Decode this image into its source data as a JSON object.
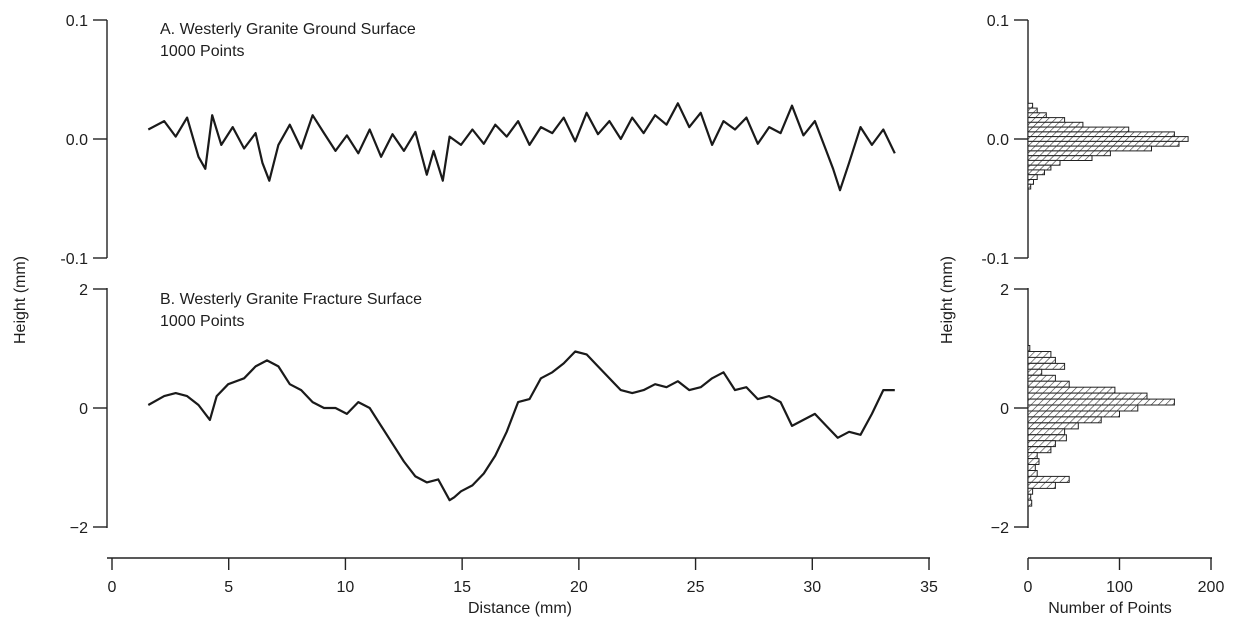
{
  "chart_data": [
    {
      "type": "line",
      "panel": "A",
      "title_line1": "A. Westerly Granite Ground Surface",
      "title_line2": "1000 Points",
      "xlabel": "Distance (mm)",
      "ylabel": "Height (mm)",
      "xlim": [
        0,
        35
      ],
      "ylim": [
        -0.1,
        0.1
      ],
      "y_ticks": [
        "0.1",
        "0.0",
        "-0.1"
      ],
      "series": [
        {
          "x": [
            0.8,
            1.5,
            2.0,
            2.5,
            3.0,
            3.3,
            3.6,
            4.0,
            4.5,
            5.0,
            5.5,
            5.8,
            6.1,
            6.5,
            7.0,
            7.5,
            8.0,
            8.5,
            9.0,
            9.5,
            10.0,
            10.5,
            11.0,
            11.5,
            12.0,
            12.5,
            13.0,
            13.3,
            13.7,
            14.0,
            14.5,
            15.0,
            15.5,
            16.0,
            16.5,
            17.0,
            17.5,
            18.0,
            18.5,
            19.0,
            19.5,
            20.0,
            20.5,
            21.0,
            21.5,
            22.0,
            22.5,
            23.0,
            23.5,
            24.0,
            24.5,
            25.0,
            25.5,
            26.0,
            26.5,
            27.0,
            27.5,
            28.0,
            28.5,
            29.0,
            29.5,
            30.0,
            30.5,
            30.8,
            31.1,
            31.5,
            32.0,
            32.5,
            33.0,
            33.5
          ],
          "y": [
            0.008,
            0.015,
            0.002,
            0.018,
            -0.015,
            -0.025,
            0.02,
            -0.005,
            0.01,
            -0.008,
            0.005,
            -0.02,
            -0.035,
            -0.005,
            0.012,
            -0.008,
            0.02,
            0.005,
            -0.01,
            0.003,
            -0.012,
            0.008,
            -0.015,
            0.004,
            -0.01,
            0.006,
            -0.03,
            -0.01,
            -0.035,
            0.002,
            -0.005,
            0.008,
            -0.004,
            0.012,
            0.002,
            0.015,
            -0.005,
            0.01,
            0.005,
            0.018,
            -0.002,
            0.022,
            0.004,
            0.015,
            0.0,
            0.018,
            0.005,
            0.02,
            0.012,
            0.03,
            0.01,
            0.022,
            -0.005,
            0.015,
            0.008,
            0.018,
            -0.004,
            0.01,
            0.005,
            0.028,
            0.003,
            0.015,
            -0.01,
            -0.025,
            -0.043,
            -0.02,
            0.01,
            -0.005,
            0.008,
            -0.012
          ]
        }
      ]
    },
    {
      "type": "line",
      "panel": "B",
      "title_line1": "B. Westerly Granite Fracture Surface",
      "title_line2": "1000 Points",
      "xlabel": "Distance (mm)",
      "ylabel": "Height (mm)",
      "xlim": [
        0,
        35
      ],
      "ylim": [
        -2,
        2
      ],
      "y_ticks": [
        "2",
        "0",
        "−2"
      ],
      "series": [
        {
          "x": [
            0.8,
            1.5,
            2.0,
            2.5,
            3.0,
            3.5,
            3.8,
            4.3,
            5.0,
            5.5,
            6.0,
            6.5,
            7.0,
            7.5,
            8.0,
            8.5,
            9.0,
            9.5,
            10.0,
            10.5,
            11.0,
            11.5,
            12.0,
            12.5,
            13.0,
            13.5,
            14.0,
            14.2,
            14.5,
            15.0,
            15.5,
            16.0,
            16.5,
            17.0,
            17.5,
            18.0,
            18.5,
            19.0,
            19.5,
            20.0,
            20.5,
            21.0,
            21.5,
            22.0,
            22.5,
            23.0,
            23.5,
            24.0,
            24.5,
            25.0,
            25.5,
            26.0,
            26.5,
            27.0,
            27.5,
            28.0,
            28.5,
            29.0,
            29.5,
            30.0,
            30.5,
            31.0,
            31.5,
            32.0,
            32.5,
            33.0,
            33.5
          ],
          "y": [
            0.05,
            0.2,
            0.25,
            0.2,
            0.05,
            -0.2,
            0.2,
            0.4,
            0.5,
            0.7,
            0.8,
            0.7,
            0.4,
            0.3,
            0.1,
            0.0,
            0.0,
            -0.1,
            0.1,
            0.0,
            -0.3,
            -0.6,
            -0.9,
            -1.15,
            -1.25,
            -1.2,
            -1.55,
            -1.5,
            -1.4,
            -1.3,
            -1.1,
            -0.8,
            -0.4,
            0.1,
            0.15,
            0.5,
            0.6,
            0.75,
            0.95,
            0.9,
            0.7,
            0.5,
            0.3,
            0.25,
            0.3,
            0.4,
            0.35,
            0.45,
            0.3,
            0.35,
            0.5,
            0.6,
            0.3,
            0.35,
            0.15,
            0.2,
            0.1,
            -0.3,
            -0.2,
            -0.1,
            -0.3,
            -0.5,
            -0.4,
            -0.45,
            -0.1,
            0.3,
            0.3
          ]
        }
      ]
    },
    {
      "type": "bar",
      "orientation": "horizontal",
      "panel": "A-histogram",
      "xlabel": "Number of Points",
      "ylabel": "Height (mm)",
      "xlim": [
        0,
        200
      ],
      "ylim": [
        -0.1,
        0.1
      ],
      "y_ticks": [
        "0.1",
        "0.0",
        "-0.1"
      ],
      "bin_centers": [
        0.028,
        0.024,
        0.02,
        0.016,
        0.012,
        0.008,
        0.004,
        0.0,
        -0.004,
        -0.008,
        -0.012,
        -0.016,
        -0.02,
        -0.024,
        -0.028,
        -0.032,
        -0.036,
        -0.04
      ],
      "values": [
        5,
        10,
        20,
        40,
        60,
        110,
        160,
        175,
        165,
        135,
        90,
        70,
        35,
        25,
        18,
        10,
        6,
        3
      ]
    },
    {
      "type": "bar",
      "orientation": "horizontal",
      "panel": "B-histogram",
      "xlabel": "Number of Points",
      "ylabel": "Height (mm)",
      "xlim": [
        0,
        200
      ],
      "ylim": [
        -2,
        2
      ],
      "y_ticks": [
        "2",
        "0",
        "−2"
      ],
      "x_ticks": [
        "0",
        "100",
        "200"
      ],
      "bin_centers": [
        1.0,
        0.9,
        0.8,
        0.7,
        0.6,
        0.5,
        0.4,
        0.3,
        0.2,
        0.1,
        0.0,
        -0.1,
        -0.2,
        -0.3,
        -0.4,
        -0.5,
        -0.6,
        -0.7,
        -0.8,
        -0.9,
        -1.0,
        -1.1,
        -1.2,
        -1.3,
        -1.4,
        -1.5,
        -1.6
      ],
      "values": [
        2,
        25,
        30,
        40,
        15,
        30,
        45,
        95,
        130,
        160,
        120,
        100,
        80,
        55,
        40,
        42,
        30,
        25,
        10,
        12,
        8,
        10,
        45,
        30,
        5,
        3,
        4
      ]
    }
  ],
  "axes": {
    "left_x_ticks": [
      "0",
      "5",
      "10",
      "15",
      "20",
      "25",
      "30",
      "35"
    ],
    "right_x_ticks": [
      "0",
      "100",
      "200"
    ],
    "left_xlabel": "Distance (mm)",
    "right_xlabel": "Number of Points",
    "left_ylabel": "Height (mm)",
    "right_ylabel": "Height (mm)"
  }
}
